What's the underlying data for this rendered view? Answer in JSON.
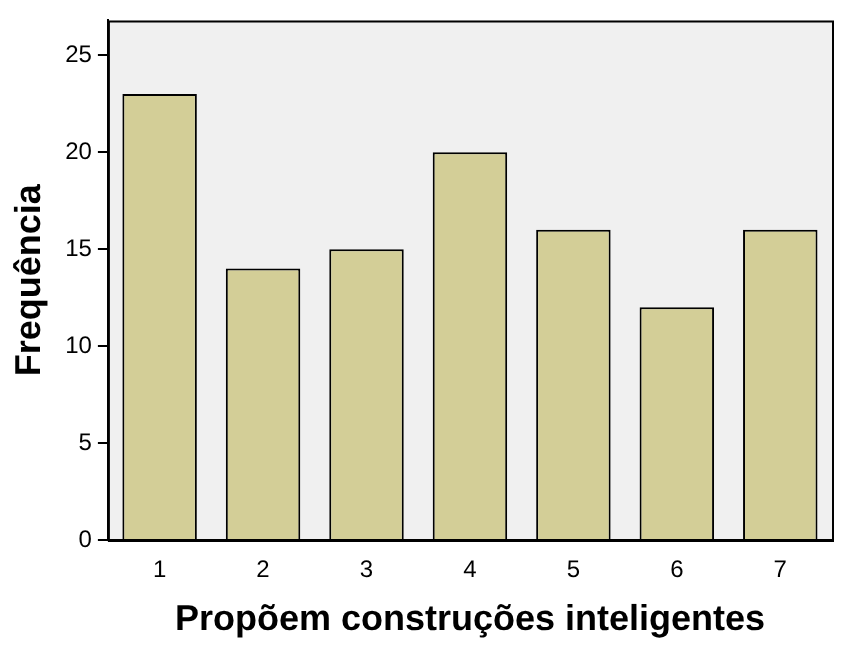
{
  "chart_data": {
    "type": "bar",
    "xlabel": "Propõem construções inteligentes",
    "ylabel": "Frequência",
    "categories": [
      "1",
      "2",
      "3",
      "4",
      "5",
      "6",
      "7"
    ],
    "values": [
      23,
      14,
      15,
      20,
      16,
      12,
      16
    ],
    "color": "#d3ce97",
    "ylim": [
      0,
      26.8
    ],
    "yticks": [
      0,
      5,
      10,
      15,
      20,
      25
    ],
    "grid": false
  }
}
